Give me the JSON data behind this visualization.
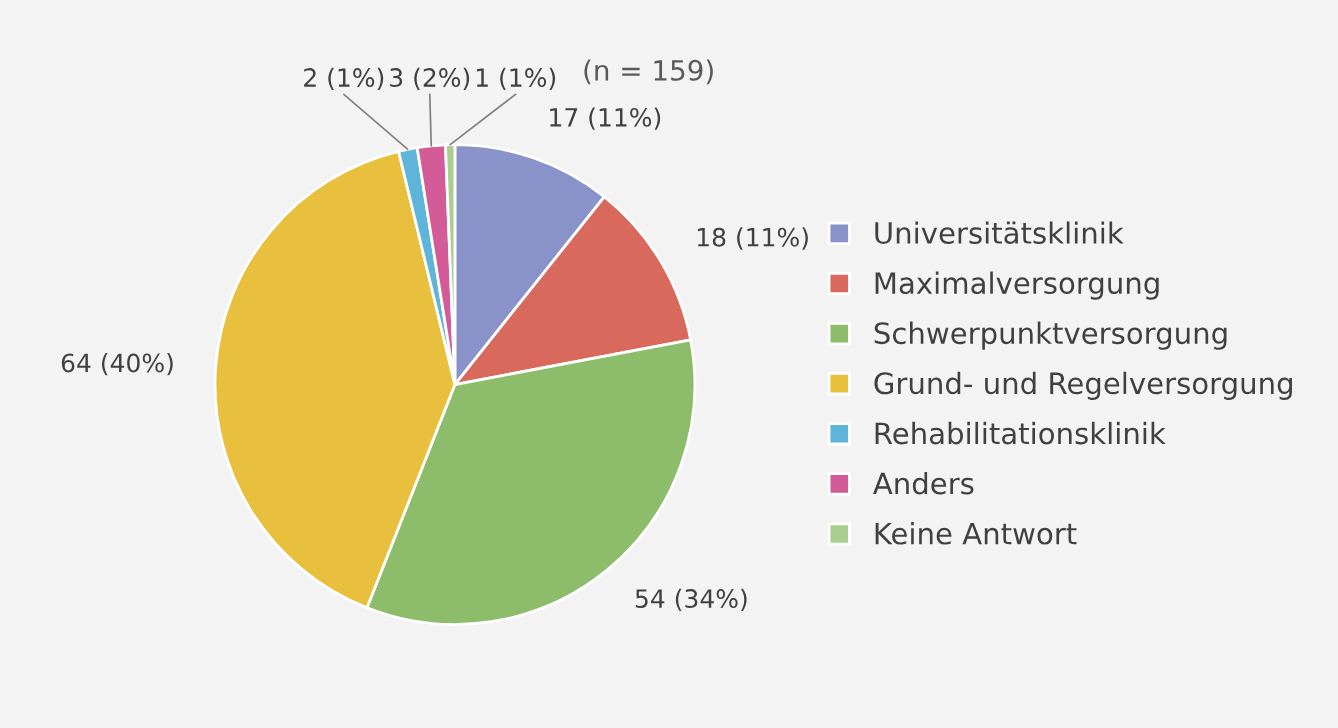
{
  "chart_data": {
    "type": "pie",
    "categories": [
      "Universitätsklinik",
      "Maximalversorgung",
      "Schwerpunktversorgung",
      "Grund- und Regelversorgung",
      "Rehabilitationsklinik",
      "Anders",
      "Keine Antwort"
    ],
    "values": [
      17,
      18,
      54,
      64,
      2,
      3,
      1
    ],
    "colors": [
      "#8a93c9",
      "#d9695c",
      "#8dbd6b",
      "#e8c03e",
      "#5fb4da",
      "#d35b98",
      "#a9cf8e"
    ],
    "value_labels": [
      "17 (11%)",
      "18 (11%)",
      "54 (34%)",
      "64 (40%)",
      "2 (1%)",
      "3 (2%)",
      "1 (1%)"
    ],
    "annotations": [
      "(n = 159)"
    ],
    "legend": "right"
  }
}
